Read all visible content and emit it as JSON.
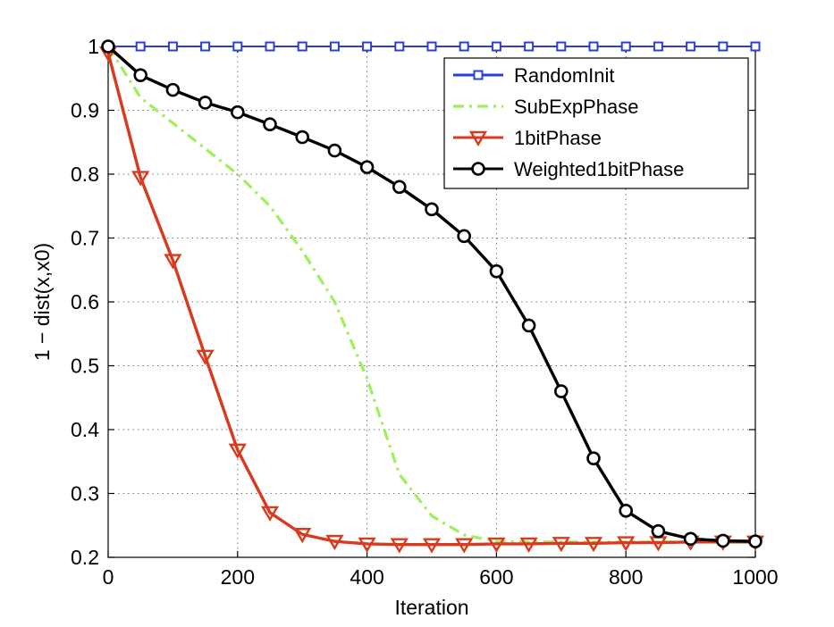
{
  "chart_data": {
    "type": "line",
    "title": "",
    "xlabel": "Iteration",
    "ylabel": "1 − dist(x,x0)",
    "xlim": [
      0,
      1000
    ],
    "ylim": [
      0.2,
      1.0
    ],
    "xticks": [
      0,
      200,
      400,
      600,
      800,
      1000
    ],
    "yticks": [
      0.2,
      0.3,
      0.4,
      0.5,
      0.6,
      0.7,
      0.8,
      0.9,
      1
    ],
    "xtick_labels": [
      "0",
      "200",
      "400",
      "600",
      "800",
      "1000"
    ],
    "ytick_labels": [
      "0.2",
      "0.3",
      "0.4",
      "0.5",
      "0.6",
      "0.7",
      "0.8",
      "0.9",
      "1"
    ],
    "grid": true,
    "legend_position": "top-right",
    "x": [
      0,
      50,
      100,
      150,
      200,
      250,
      300,
      350,
      400,
      450,
      500,
      550,
      600,
      650,
      700,
      750,
      800,
      850,
      900,
      950,
      1000
    ],
    "series": [
      {
        "name": "RandomInit",
        "color": "#2b3fd6",
        "line_style": "solid",
        "marker": "square",
        "values": [
          1,
          1,
          1,
          1,
          1,
          1,
          1,
          1,
          1,
          1,
          1,
          1,
          1,
          1,
          1,
          1,
          1,
          1,
          1,
          1,
          1
        ]
      },
      {
        "name": "SubExpPhase",
        "color": "#9df05a",
        "line_style": "dash-dot",
        "marker": "none",
        "values": [
          1,
          0.92,
          0.88,
          0.84,
          0.8,
          0.75,
          0.68,
          0.6,
          0.48,
          0.33,
          0.265,
          0.235,
          0.225,
          0.224,
          0.224,
          0.224,
          0.224,
          0.224,
          0.224,
          0.224,
          0.224
        ]
      },
      {
        "name": "1bitPhase",
        "color": "#d93a1e",
        "line_style": "solid",
        "marker": "triangle-down",
        "values": [
          0.99,
          0.795,
          0.665,
          0.515,
          0.368,
          0.27,
          0.236,
          0.225,
          0.221,
          0.22,
          0.22,
          0.22,
          0.221,
          0.221,
          0.222,
          0.222,
          0.223,
          0.223,
          0.224,
          0.224,
          0.224
        ]
      },
      {
        "name": "Weighted1bitPhase",
        "color": "#000000",
        "line_style": "solid",
        "marker": "circle",
        "values": [
          1,
          0.955,
          0.932,
          0.912,
          0.897,
          0.878,
          0.858,
          0.837,
          0.811,
          0.78,
          0.745,
          0.703,
          0.648,
          0.563,
          0.46,
          0.355,
          0.273,
          0.241,
          0.229,
          0.226,
          0.225
        ]
      }
    ]
  }
}
